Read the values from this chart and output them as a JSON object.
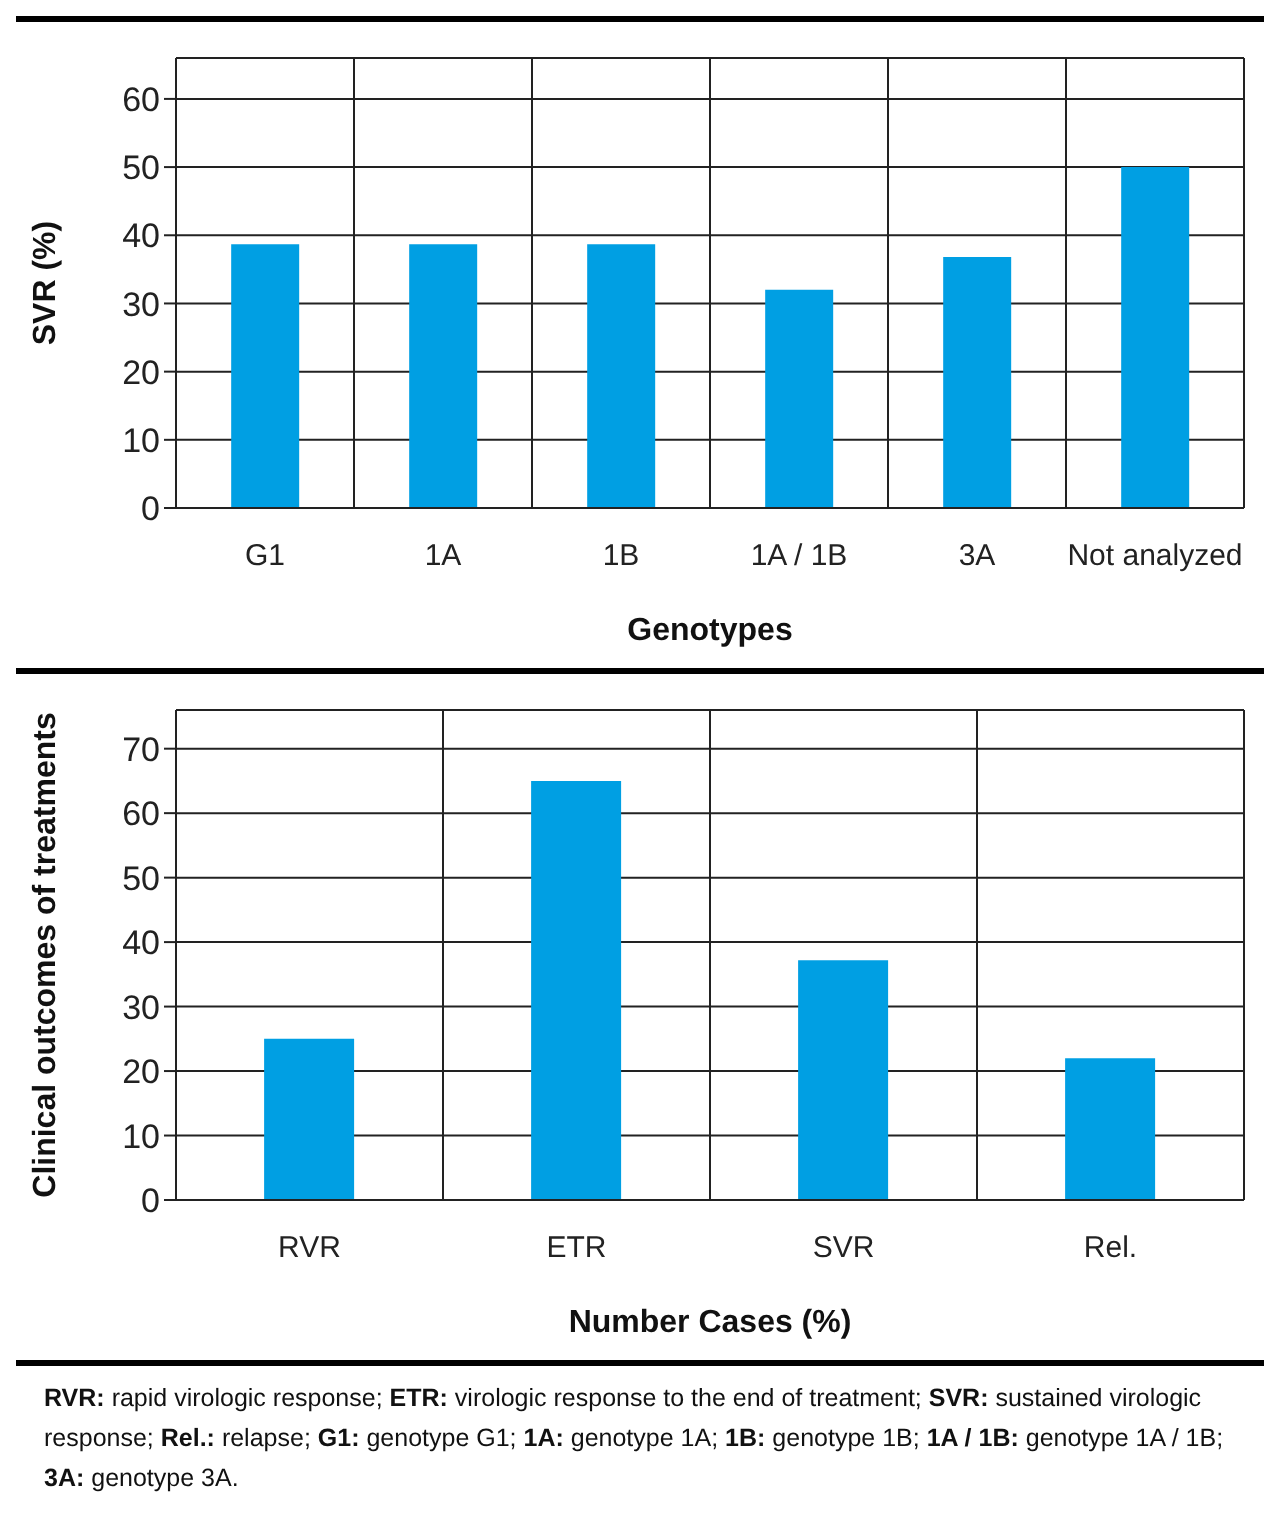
{
  "chart_data": [
    {
      "type": "bar",
      "categories": [
        "G1",
        "1A",
        "1B",
        "1A / 1B",
        "3A",
        "Not analyzed"
      ],
      "values": [
        38.7,
        38.7,
        38.7,
        32,
        36.8,
        50
      ],
      "color": "#009fe3",
      "xlabel": "Genotypes",
      "ylabel": "SVR (%)",
      "ylim": [
        0,
        66
      ],
      "yticks": [
        0,
        10,
        20,
        30,
        40,
        50,
        60
      ],
      "grid": true
    },
    {
      "type": "bar",
      "categories": [
        "RVR",
        "ETR",
        "SVR",
        "Rel."
      ],
      "values": [
        25,
        65,
        37.2,
        22
      ],
      "color": "#009fe3",
      "xlabel": "Number Cases (%)",
      "ylabel": "Clinical outcomes of treatments",
      "ylim": [
        0,
        76
      ],
      "yticks": [
        0,
        10,
        20,
        30,
        40,
        50,
        60,
        70
      ],
      "grid": true,
      "annotations": [
        "RVR: rapid virologic response; ETR: virologic response to the end of treatment; SVR: sustained virologic response; Rel.: relapse; G1: genotype G1; 1A: genotype 1A; 1B: genotype 1B; 1A / 1B: genotype 1A / 1B; 3A: genotype 3A."
      ]
    }
  ]
}
